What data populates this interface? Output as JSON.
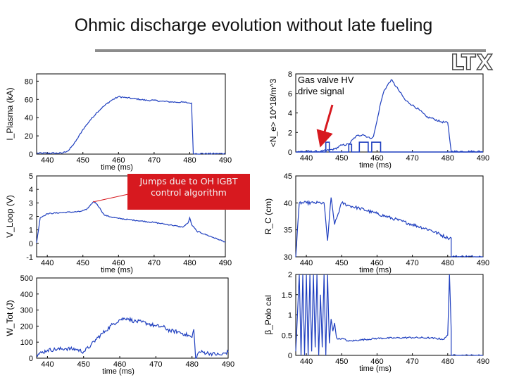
{
  "page": {
    "title": "Ohmic discharge evolution without late fueling",
    "logo_text": "LTX",
    "callout_text": "Jumps due to OH IGBT control algorithm"
  },
  "colors": {
    "trace": "#1f3fbf",
    "axis": "#000000",
    "callout": "#d7191f",
    "arrow": "#d7191f",
    "rule": "#8c8c8c"
  },
  "chart_data": [
    {
      "id": "iplasma",
      "type": "line",
      "title": "",
      "xlabel": "time (ms)",
      "ylabel": "I_Plasma (kA)",
      "xlim": [
        437,
        490
      ],
      "ylim": [
        0,
        88
      ],
      "xticks": [
        440,
        450,
        460,
        470,
        480,
        490
      ],
      "yticks": [
        0,
        20,
        40,
        60,
        80
      ],
      "noise": 0.8,
      "series": [
        {
          "x": [
            437,
            444,
            446,
            448,
            450,
            452,
            454,
            456,
            458,
            460,
            462,
            464,
            466,
            468,
            470,
            472,
            474,
            476,
            478,
            480,
            480.5,
            481,
            490
          ],
          "y": [
            1,
            1,
            4,
            14,
            27,
            37,
            46,
            53,
            59,
            63,
            62,
            61,
            60,
            59,
            59,
            58,
            57.5,
            57,
            57,
            56,
            56,
            0.5,
            0.5
          ]
        }
      ]
    },
    {
      "id": "ne",
      "type": "line",
      "title": "",
      "xlabel": "time (ms)",
      "ylabel": "<N_e> 10^18/m^3",
      "xlim": [
        437,
        490
      ],
      "ylim": [
        0,
        8
      ],
      "xticks": [
        440,
        450,
        460,
        470,
        480,
        490
      ],
      "yticks": [
        0,
        2,
        4,
        6,
        8
      ],
      "noise": 0.1,
      "series": [
        {
          "x": [
            437,
            444,
            448,
            450,
            452,
            454,
            456,
            458,
            459,
            460,
            461,
            462,
            464,
            466,
            468,
            470,
            472,
            474,
            476,
            478,
            480,
            481,
            490
          ],
          "y": [
            0.05,
            0.05,
            0.3,
            0.7,
            0.8,
            1.6,
            1.8,
            1.4,
            1.6,
            3.2,
            5.0,
            6.3,
            7.4,
            6.4,
            5.3,
            4.8,
            4.3,
            3.6,
            3.4,
            3.1,
            3.0,
            0.05,
            0.05
          ]
        },
        {
          "x": [
            437,
            445.5,
            445.5,
            446.5,
            446.5,
            452,
            452,
            452.8,
            452.8,
            455,
            455,
            457.5,
            457.5,
            458.5,
            458.5,
            461,
            461,
            490
          ],
          "y": [
            0,
            0,
            1.0,
            1.0,
            0,
            0,
            0.8,
            0.8,
            0,
            0,
            1.0,
            1.0,
            0,
            0,
            1.0,
            1.0,
            0,
            0
          ]
        }
      ],
      "annotation": "Gas valve HV drive signal"
    },
    {
      "id": "vloop",
      "type": "line",
      "title": "",
      "xlabel": "time (ms)",
      "ylabel": "V_Loop (V)",
      "xlim": [
        437,
        490
      ],
      "ylim": [
        -1,
        5
      ],
      "xticks": [
        440,
        450,
        460,
        470,
        480,
        490
      ],
      "yticks": [
        -1,
        0,
        1,
        2,
        3,
        4,
        5
      ],
      "noise": 0.04,
      "series": [
        {
          "x": [
            437,
            438,
            440,
            445,
            449,
            451,
            452,
            453,
            454,
            455,
            456,
            458,
            460,
            465,
            470,
            475,
            478,
            479.5,
            480,
            480.5,
            482,
            485,
            488,
            490
          ],
          "y": [
            0.05,
            1.9,
            2.2,
            2.3,
            2.35,
            2.5,
            2.8,
            3.1,
            2.9,
            2.5,
            2.1,
            1.95,
            1.85,
            1.7,
            1.55,
            1.35,
            1.2,
            1.5,
            1.9,
            1.4,
            0.9,
            0.6,
            0.3,
            0.1
          ]
        }
      ]
    },
    {
      "id": "rc",
      "type": "line",
      "title": "",
      "xlabel": "time (ms)",
      "ylabel": "R_C (cm)",
      "xlim": [
        437,
        490
      ],
      "ylim": [
        30,
        45
      ],
      "xticks": [
        440,
        450,
        460,
        470,
        480,
        490
      ],
      "yticks": [
        30,
        35,
        40,
        45
      ],
      "noise": 0.3,
      "series": [
        {
          "x": [
            437,
            438,
            440,
            442,
            444,
            445,
            446,
            447,
            448,
            450,
            452,
            455,
            460,
            465,
            470,
            475,
            480,
            481,
            481,
            490
          ],
          "y": [
            30,
            40,
            40,
            40,
            40,
            40,
            33,
            41,
            36,
            40,
            39.5,
            39,
            38,
            37,
            36,
            35,
            33.5,
            33.5,
            30,
            30
          ]
        }
      ]
    },
    {
      "id": "wtot",
      "type": "line",
      "title": "",
      "xlabel": "time (ms)",
      "ylabel": "W_Tot (J)",
      "xlim": [
        437,
        490
      ],
      "ylim": [
        0,
        500
      ],
      "xticks": [
        440,
        450,
        460,
        470,
        480,
        490
      ],
      "yticks": [
        0,
        100,
        200,
        300,
        400,
        500
      ],
      "noise": 12,
      "series": [
        {
          "x": [
            437,
            440,
            445,
            448,
            450,
            452,
            454,
            456,
            458,
            460,
            462,
            464,
            466,
            468,
            470,
            472,
            474,
            476,
            478,
            480,
            480.5,
            481,
            482,
            485,
            488,
            490
          ],
          "y": [
            20,
            50,
            60,
            55,
            40,
            80,
            130,
            170,
            210,
            240,
            250,
            230,
            225,
            215,
            200,
            195,
            170,
            165,
            150,
            130,
            180,
            0,
            40,
            30,
            20,
            40
          ]
        }
      ]
    },
    {
      "id": "betapol",
      "type": "line",
      "title": "",
      "xlabel": "time (ms)",
      "ylabel": "β_Polo cal",
      "xlim": [
        437,
        490
      ],
      "ylim": [
        0,
        2
      ],
      "xticks": [
        440,
        450,
        460,
        470,
        480,
        490
      ],
      "yticks": [
        0,
        0.5,
        1,
        1.5,
        2
      ],
      "noise": 0.02,
      "series": [
        {
          "x": [
            437,
            438,
            438.5,
            439,
            439.5,
            440,
            440.5,
            441,
            441.5,
            442,
            442.5,
            443,
            443.5,
            444,
            444.5,
            445,
            445.5,
            446,
            446.5,
            447,
            447.5,
            448,
            448.5,
            449,
            450,
            452,
            455,
            460,
            465,
            470,
            475,
            479,
            480,
            480.5,
            481,
            481,
            490
          ],
          "y": [
            0.1,
            2,
            0,
            2,
            0,
            2,
            0,
            2,
            0.1,
            2,
            0.2,
            2,
            0,
            1.5,
            0.2,
            2,
            0,
            2,
            0.3,
            0.9,
            0.6,
            0.8,
            0.45,
            0.4,
            0.42,
            0.35,
            0.38,
            0.42,
            0.43,
            0.44,
            0.43,
            0.4,
            0.5,
            2,
            0.6,
            0,
            0
          ]
        }
      ]
    }
  ]
}
